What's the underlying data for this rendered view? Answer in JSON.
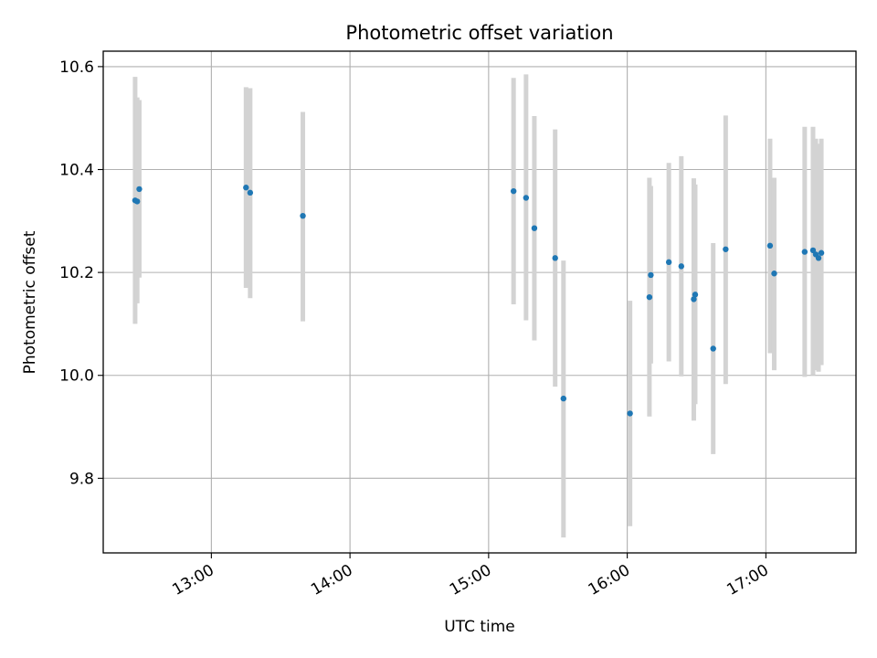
{
  "chart_data": {
    "type": "scatter",
    "title": "Photometric offset variation",
    "xlabel": "UTC time",
    "ylabel": "Photometric offset",
    "xlim_hours": [
      12.22,
      17.65
    ],
    "ylim": [
      9.655,
      10.63
    ],
    "x_ticks": [
      {
        "value": 13.0,
        "label": "13:00"
      },
      {
        "value": 14.0,
        "label": "14:00"
      },
      {
        "value": 15.0,
        "label": "15:00"
      },
      {
        "value": 16.0,
        "label": "16:00"
      },
      {
        "value": 17.0,
        "label": "17:00"
      }
    ],
    "y_ticks": [
      {
        "value": 9.8,
        "label": "9.8"
      },
      {
        "value": 10.0,
        "label": "10.0"
      },
      {
        "value": 10.2,
        "label": "10.2"
      },
      {
        "value": 10.4,
        "label": "10.4"
      },
      {
        "value": 10.6,
        "label": "10.6"
      }
    ],
    "grid": true,
    "marker_color": "#1f77b4",
    "errorbar_color": "#d3d3d3",
    "points": [
      {
        "t": 12.45,
        "y": 10.34,
        "lo": 10.1,
        "hi": 10.58
      },
      {
        "t": 12.465,
        "y": 10.338,
        "lo": 10.14,
        "hi": 10.54
      },
      {
        "t": 12.48,
        "y": 10.362,
        "lo": 10.19,
        "hi": 10.535
      },
      {
        "t": 13.25,
        "y": 10.365,
        "lo": 10.17,
        "hi": 10.56
      },
      {
        "t": 13.28,
        "y": 10.355,
        "lo": 10.15,
        "hi": 10.558
      },
      {
        "t": 13.66,
        "y": 10.31,
        "lo": 10.105,
        "hi": 10.512
      },
      {
        "t": 15.18,
        "y": 10.358,
        "lo": 10.138,
        "hi": 10.578
      },
      {
        "t": 15.27,
        "y": 10.345,
        "lo": 10.107,
        "hi": 10.585
      },
      {
        "t": 15.33,
        "y": 10.286,
        "lo": 10.068,
        "hi": 10.504
      },
      {
        "t": 15.48,
        "y": 10.228,
        "lo": 9.978,
        "hi": 10.478
      },
      {
        "t": 15.54,
        "y": 9.955,
        "lo": 9.685,
        "hi": 10.223
      },
      {
        "t": 16.02,
        "y": 9.926,
        "lo": 9.707,
        "hi": 10.145
      },
      {
        "t": 16.16,
        "y": 10.152,
        "lo": 9.92,
        "hi": 10.384
      },
      {
        "t": 16.17,
        "y": 10.195,
        "lo": 10.023,
        "hi": 10.368
      },
      {
        "t": 16.3,
        "y": 10.22,
        "lo": 10.027,
        "hi": 10.413
      },
      {
        "t": 16.39,
        "y": 10.212,
        "lo": 9.998,
        "hi": 10.426
      },
      {
        "t": 16.48,
        "y": 10.148,
        "lo": 9.912,
        "hi": 10.383
      },
      {
        "t": 16.49,
        "y": 10.157,
        "lo": 9.944,
        "hi": 10.371
      },
      {
        "t": 16.62,
        "y": 10.052,
        "lo": 9.847,
        "hi": 10.257
      },
      {
        "t": 16.71,
        "y": 10.245,
        "lo": 9.983,
        "hi": 10.505
      },
      {
        "t": 17.03,
        "y": 10.252,
        "lo": 10.043,
        "hi": 10.46
      },
      {
        "t": 17.06,
        "y": 10.198,
        "lo": 10.01,
        "hi": 10.384
      },
      {
        "t": 17.28,
        "y": 10.24,
        "lo": 9.997,
        "hi": 10.483
      },
      {
        "t": 17.34,
        "y": 10.243,
        "lo": 10.0,
        "hi": 10.483
      },
      {
        "t": 17.36,
        "y": 10.235,
        "lo": 10.01,
        "hi": 10.46
      },
      {
        "t": 17.38,
        "y": 10.228,
        "lo": 10.007,
        "hi": 10.45
      },
      {
        "t": 17.4,
        "y": 10.238,
        "lo": 10.02,
        "hi": 10.46
      }
    ]
  }
}
